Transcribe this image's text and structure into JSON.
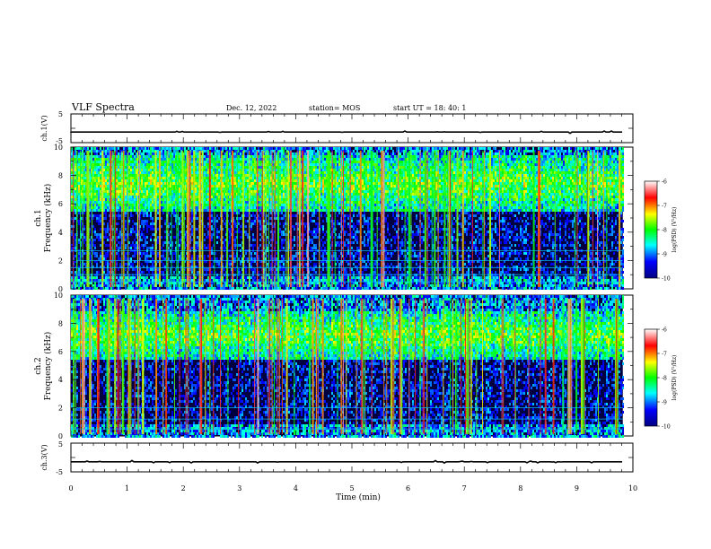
{
  "header": {
    "title": "VLF Spectra",
    "date": "Dec. 12, 2022",
    "station": "station= MOS",
    "start": "start UT =  18: 40: 1"
  },
  "chart_data": [
    {
      "type": "line",
      "panel": "ch1-voltage",
      "ylabel": "ch.1(V)",
      "ylim": [
        -5,
        5
      ],
      "y_ticks": [
        "5",
        "-5"
      ],
      "baseline": -1.3
    },
    {
      "type": "heatmap",
      "panel": "ch1-spectrogram",
      "ylabel_top": "ch.1",
      "ylabel": "Frequency (kHz)",
      "ylim": [
        0,
        10
      ],
      "y_ticks": [
        "0",
        "2",
        "4",
        "6",
        "8",
        "10"
      ],
      "colorbar": {
        "label": "log(PSD) (V²/Hz)",
        "range": [
          -10,
          -6
        ],
        "ticks": [
          "-6",
          "-7",
          "-8",
          "-9",
          "-10"
        ],
        "colors": [
          "#000080",
          "#0000ff",
          "#00ffff",
          "#00ff00",
          "#ffff00",
          "#ff0000",
          "#ffffff"
        ]
      },
      "hum_lines_khz": [
        0.5,
        1.0,
        1.5,
        2.0,
        2.7
      ],
      "band_khz": [
        5.5,
        9.5
      ],
      "intensity_profile": "broadband impulsive sferics with strongest power 7-9.5 kHz"
    },
    {
      "type": "heatmap",
      "panel": "ch2-spectrogram",
      "ylabel_top": "ch.2",
      "ylabel": "Frequency (kHz)",
      "ylim": [
        0,
        10
      ],
      "y_ticks": [
        "0",
        "2",
        "4",
        "6",
        "8",
        "10"
      ],
      "colorbar": {
        "label": "log(PSD) (V²/Hz)",
        "range": [
          -10,
          -6
        ],
        "ticks": [
          "-6",
          "-7",
          "-8",
          "-9",
          "-10"
        ],
        "colors": [
          "#000080",
          "#0000ff",
          "#00ffff",
          "#00ff00",
          "#ffff00",
          "#ff0000",
          "#ffffff"
        ]
      },
      "hum_lines_khz": [
        0.5,
        1.2,
        2.0
      ],
      "band_khz": [
        5.5,
        9.0
      ],
      "intensity_profile": "broadband sferics with strongest power 6-8 kHz"
    },
    {
      "type": "line",
      "panel": "ch3-voltage",
      "ylabel": "ch.3(V)",
      "ylim": [
        -5,
        5
      ],
      "y_ticks": [
        "5",
        "-5"
      ],
      "baseline": -1.5
    }
  ],
  "xaxis": {
    "label": "Time (min)",
    "xlim": [
      0,
      10
    ],
    "ticks": [
      "0",
      "1",
      "2",
      "3",
      "4",
      "5",
      "6",
      "7",
      "8",
      "9",
      "10"
    ],
    "data_end_min": 9.82
  }
}
